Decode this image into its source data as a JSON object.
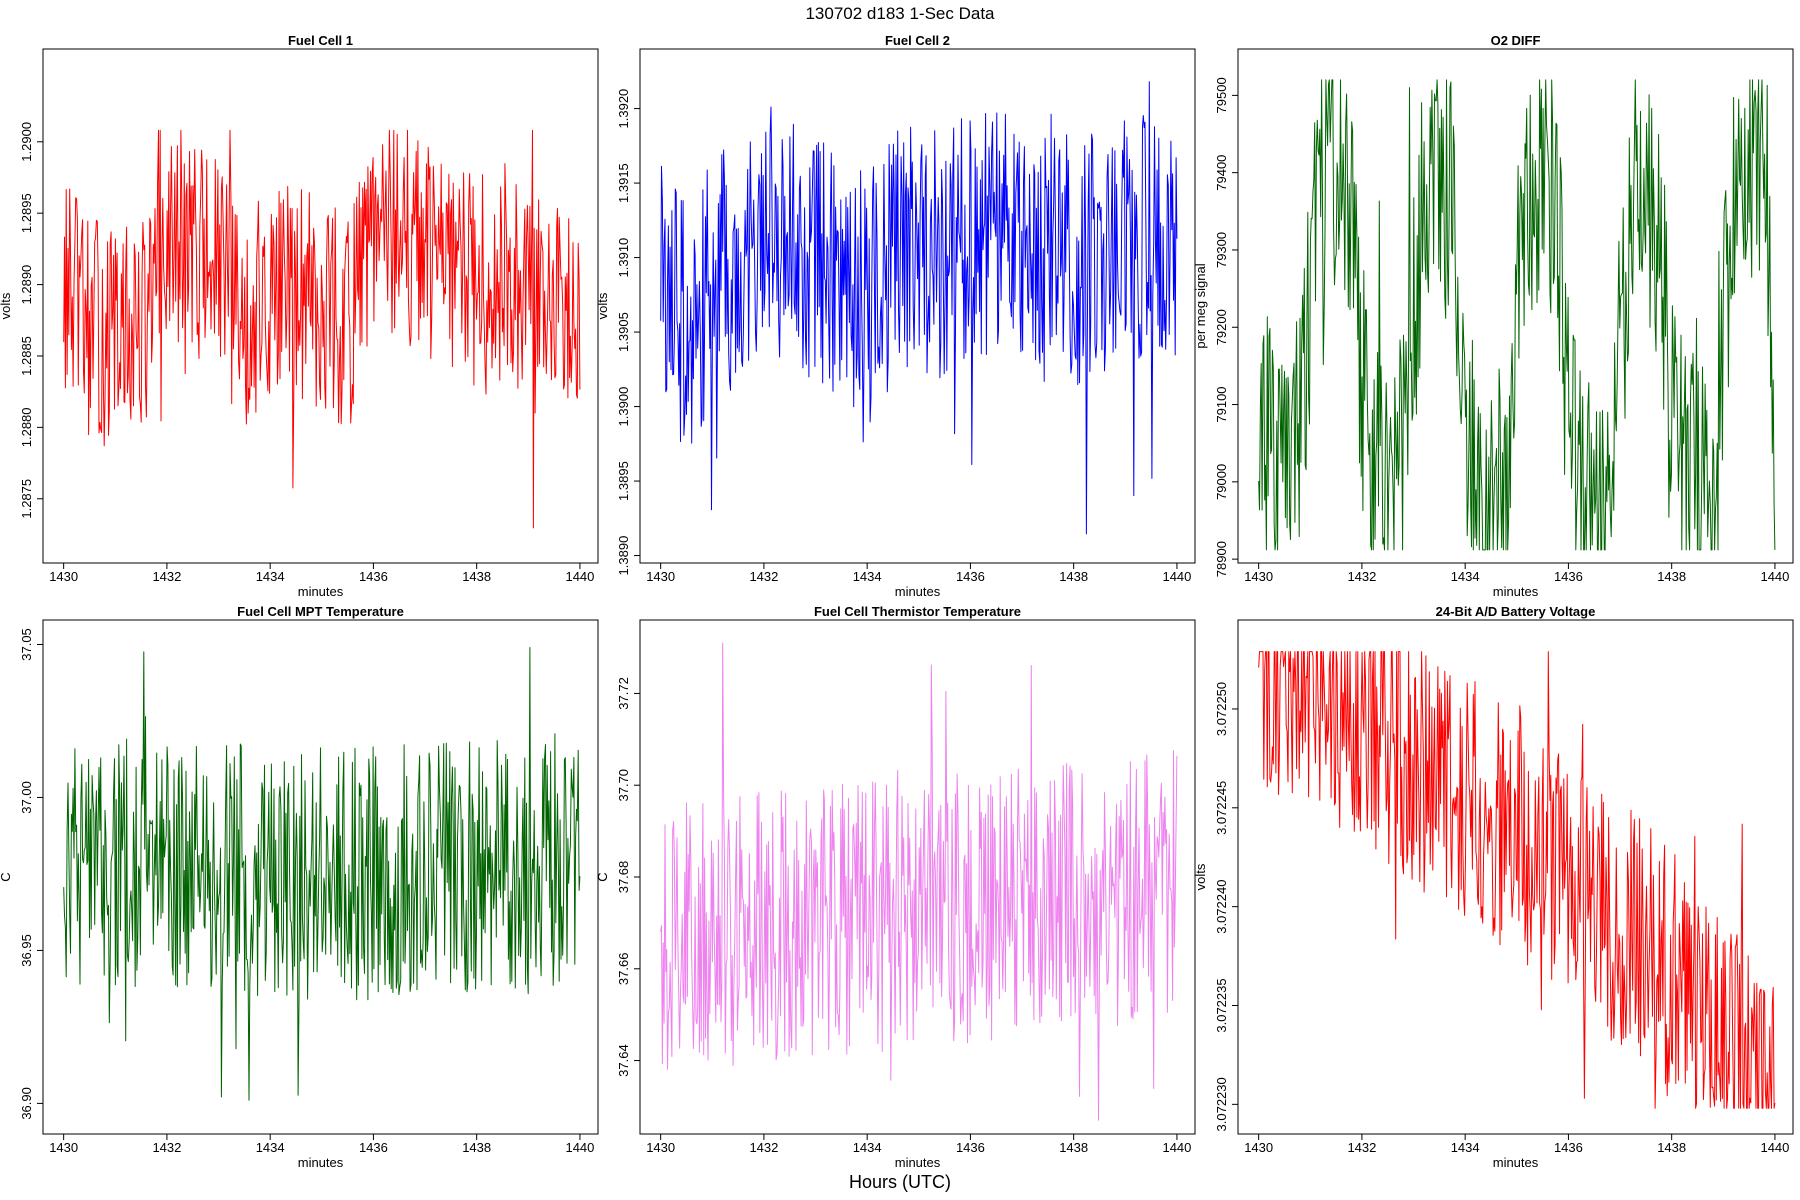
{
  "page": {
    "title": "130702   d183   1-Sec Data",
    "footer": "Hours (UTC)"
  },
  "chart_data": [
    {
      "id": "fc1",
      "type": "line",
      "title": "Fuel Cell 1",
      "xlabel": "minutes",
      "ylabel": "volts",
      "color": "#ff0000",
      "xlim": [
        1429.6,
        1440.35
      ],
      "ylim": [
        1.28705,
        1.29065
      ],
      "xticks": [
        1430,
        1432,
        1434,
        1436,
        1438,
        1440
      ],
      "xtick_labels": [
        "1430",
        "1432",
        "1434",
        "1436",
        "1438",
        "1440"
      ],
      "yticks": [
        1.2875,
        1.288,
        1.2885,
        1.289,
        1.2895,
        1.29
      ],
      "ytick_labels": [
        "1.2875",
        "1.2880",
        "1.2885",
        "1.2890",
        "1.2895",
        "1.2900"
      ],
      "series": [
        {
          "name": "Fuel Cell 1",
          "x": [
            1430.0,
            1430.5,
            1431.0,
            1431.5,
            1432.0,
            1432.5,
            1433.0,
            1433.5,
            1434.0,
            1434.5,
            1435.0,
            1435.5,
            1436.0,
            1436.5,
            1437.0,
            1437.5,
            1438.0,
            1438.5,
            1439.0,
            1439.5,
            1440.0
          ],
          "values": [
            1.289,
            1.2887,
            1.2886,
            1.2887,
            1.2892,
            1.2893,
            1.2891,
            1.2887,
            1.2889,
            1.289,
            1.2889,
            1.2887,
            1.2893,
            1.2894,
            1.2892,
            1.2891,
            1.289,
            1.2891,
            1.2889,
            1.2888,
            1.289
          ],
          "min": 1.28725,
          "max": 1.29008
        }
      ]
    },
    {
      "id": "fc2",
      "type": "line",
      "title": "Fuel Cell 2",
      "xlabel": "minutes",
      "ylabel": "volts",
      "color": "#0000ff",
      "xlim": [
        1429.6,
        1440.35
      ],
      "ylim": [
        1.38895,
        1.3924
      ],
      "xticks": [
        1430,
        1432,
        1434,
        1436,
        1438,
        1440
      ],
      "xtick_labels": [
        "1430",
        "1432",
        "1434",
        "1436",
        "1438",
        "1440"
      ],
      "yticks": [
        1.389,
        1.3895,
        1.39,
        1.3905,
        1.391,
        1.3915,
        1.392
      ],
      "ytick_labels": [
        "1.3890",
        "1.3895",
        "1.3900",
        "1.3905",
        "1.3910",
        "1.3915",
        "1.3920"
      ],
      "series": [
        {
          "name": "Fuel Cell 2",
          "x": [
            1430.0,
            1430.5,
            1431.0,
            1431.5,
            1432.0,
            1432.5,
            1433.0,
            1433.5,
            1434.0,
            1434.5,
            1435.0,
            1435.5,
            1436.0,
            1436.5,
            1437.0,
            1437.5,
            1438.0,
            1438.5,
            1439.0,
            1439.5,
            1440.0
          ],
          "values": [
            1.3909,
            1.3905,
            1.3908,
            1.391,
            1.3913,
            1.3911,
            1.391,
            1.3909,
            1.3907,
            1.391,
            1.3911,
            1.391,
            1.3912,
            1.3912,
            1.3911,
            1.391,
            1.391,
            1.391,
            1.3911,
            1.3912,
            1.3911
          ],
          "min": 1.38908,
          "max": 1.39218
        }
      ]
    },
    {
      "id": "o2",
      "type": "line",
      "title": "O2 DIFF",
      "xlabel": "minutes",
      "ylabel": "per meg signal",
      "color": "#006400",
      "xlim": [
        1429.6,
        1440.35
      ],
      "ylim": [
        78895,
        79560
      ],
      "xticks": [
        1430,
        1432,
        1434,
        1436,
        1438,
        1440
      ],
      "xtick_labels": [
        "1430",
        "1432",
        "1434",
        "1436",
        "1438",
        "1440"
      ],
      "yticks": [
        78900,
        79000,
        79100,
        79200,
        79300,
        79400,
        79500
      ],
      "ytick_labels": [
        "78900",
        "79000",
        "79100",
        "79200",
        "79300",
        "79400",
        "79500"
      ],
      "series": [
        {
          "name": "O2 DIFF",
          "x": [
            1430.0,
            1430.2,
            1430.5,
            1430.8,
            1431.0,
            1431.2,
            1431.5,
            1431.8,
            1431.95,
            1432.2,
            1432.5,
            1432.8,
            1433.0,
            1433.2,
            1433.5,
            1433.8,
            1433.95,
            1434.2,
            1434.5,
            1434.8,
            1435.0,
            1435.2,
            1435.5,
            1435.8,
            1435.95,
            1436.2,
            1436.5,
            1436.8,
            1437.0,
            1437.2,
            1437.5,
            1437.8,
            1437.95,
            1438.2,
            1438.5,
            1438.8,
            1439.0,
            1439.2,
            1439.5,
            1439.8,
            1440.0
          ],
          "values": [
            79090,
            79060,
            79050,
            79080,
            79250,
            79380,
            79410,
            79380,
            79150,
            79040,
            79050,
            79060,
            79200,
            79370,
            79390,
            79360,
            79130,
            79000,
            78990,
            79020,
            79250,
            79370,
            79400,
            79340,
            79100,
            79010,
            78960,
            78940,
            79200,
            79350,
            79370,
            79310,
            79100,
            79030,
            78990,
            78980,
            79200,
            79380,
            79420,
            79450,
            79060
          ],
          "min": 78912,
          "max": 79520
        }
      ]
    },
    {
      "id": "mpt",
      "type": "line",
      "title": "Fuel Cell MPT Temperature",
      "xlabel": "minutes",
      "ylabel": "C",
      "color": "#006400",
      "xlim": [
        1429.6,
        1440.35
      ],
      "ylim": [
        36.89,
        37.058
      ],
      "xticks": [
        1430,
        1432,
        1434,
        1436,
        1438,
        1440
      ],
      "xtick_labels": [
        "1430",
        "1432",
        "1434",
        "1436",
        "1438",
        "1440"
      ],
      "yticks": [
        36.9,
        36.95,
        37.0,
        37.05
      ],
      "ytick_labels": [
        "36.90",
        "36.95",
        "37.00",
        "37.05"
      ],
      "series": [
        {
          "name": "Fuel Cell MPT Temperature",
          "x": [
            1430.0,
            1432.0,
            1434.0,
            1436.0,
            1438.0,
            1440.0
          ],
          "values": [
            36.975,
            36.98,
            36.975,
            36.975,
            36.978,
            36.975
          ],
          "min": 36.901,
          "max": 37.052
        }
      ]
    },
    {
      "id": "therm",
      "type": "line",
      "title": "Fuel Cell Thermistor Temperature",
      "xlabel": "minutes",
      "ylabel": "C",
      "color": "#ee82ee",
      "xlim": [
        1429.6,
        1440.35
      ],
      "ylim": [
        37.624,
        37.736
      ],
      "xticks": [
        1430,
        1432,
        1434,
        1436,
        1438,
        1440
      ],
      "xtick_labels": [
        "1430",
        "1432",
        "1434",
        "1436",
        "1438",
        "1440"
      ],
      "yticks": [
        37.64,
        37.66,
        37.68,
        37.7,
        37.72
      ],
      "ytick_labels": [
        "37.64",
        "37.66",
        "37.68",
        "37.70",
        "37.72"
      ],
      "series": [
        {
          "name": "Fuel Cell Thermistor Temperature",
          "x": [
            1430.0,
            1432.0,
            1434.0,
            1436.0,
            1438.0,
            1440.0
          ],
          "values": [
            37.667,
            37.669,
            37.671,
            37.673,
            37.676,
            37.678
          ],
          "min": 37.627,
          "max": 37.735
        }
      ]
    },
    {
      "id": "batt",
      "type": "line",
      "title": "24-Bit A/D Battery Voltage",
      "xlabel": "minutes",
      "ylabel": "volts",
      "color": "#ff0000",
      "xlim": [
        1429.6,
        1440.35
      ],
      "ylim": [
        3.0722285,
        3.0722545
      ],
      "xticks": [
        1430,
        1432,
        1434,
        1436,
        1438,
        1440
      ],
      "xtick_labels": [
        "1430",
        "1432",
        "1434",
        "1436",
        "1438",
        "1440"
      ],
      "yticks": [
        3.07223,
        3.072235,
        3.07224,
        3.072245,
        3.07225
      ],
      "ytick_labels": [
        "3.072230",
        "3.072235",
        "3.072240",
        "3.072245",
        "3.072250"
      ],
      "series": [
        {
          "name": "24-Bit A/D Battery Voltage",
          "x": [
            1430.0,
            1430.5,
            1431.0,
            1431.5,
            1432.0,
            1432.5,
            1433.0,
            1433.5,
            1434.0,
            1434.5,
            1435.0,
            1435.5,
            1436.0,
            1436.5,
            1437.0,
            1437.5,
            1438.0,
            1438.5,
            1439.0,
            1439.5,
            1440.0
          ],
          "values": [
            3.072251,
            3.0722515,
            3.072251,
            3.07225,
            3.0722495,
            3.0722485,
            3.072247,
            3.072246,
            3.0722455,
            3.0722445,
            3.072244,
            3.0722425,
            3.0722415,
            3.0722405,
            3.072239,
            3.072238,
            3.0722365,
            3.072235,
            3.0722335,
            3.072232,
            3.0722305
          ],
          "min": 3.0722298,
          "max": 3.0722529
        }
      ]
    }
  ]
}
